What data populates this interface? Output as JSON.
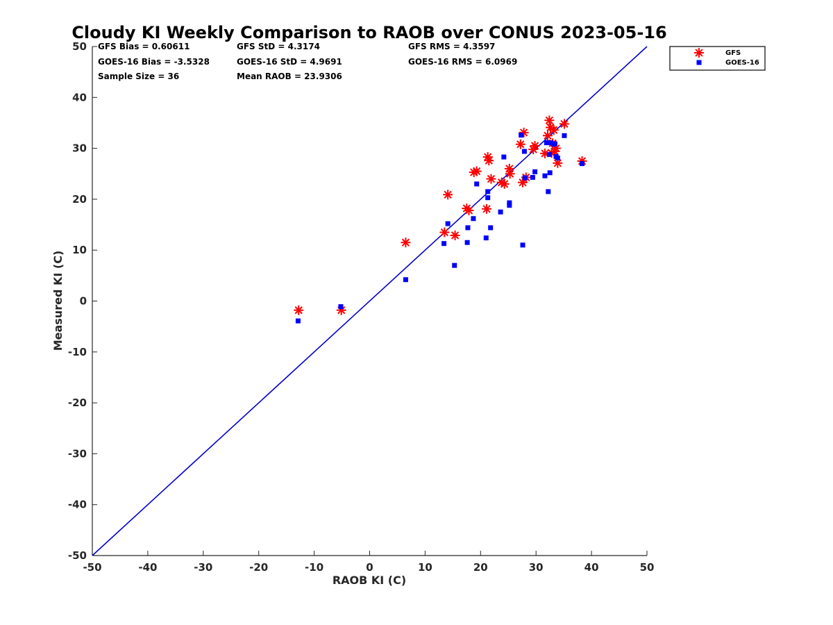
{
  "chart_data": {
    "type": "scatter",
    "title": "Cloudy KI Weekly Comparison to RAOB over CONUS 2023-05-16",
    "xlabel": "RAOB KI (C)",
    "ylabel": "Measured KI (C)",
    "xlim": [
      -50,
      50
    ],
    "ylim": [
      -50,
      50
    ],
    "xticks": [
      "-50",
      "-40",
      "-30",
      "-20",
      "-10",
      "0",
      "10",
      "20",
      "30",
      "40",
      "50"
    ],
    "yticks": [
      "-50",
      "-40",
      "-30",
      "-20",
      "-10",
      "0",
      "10",
      "20",
      "30",
      "40",
      "50"
    ],
    "grid": false,
    "legend_position": "outside top-right",
    "reference_line": {
      "type": "1:1",
      "color": "#0000cc"
    },
    "stats": [
      [
        "GFS Bias = 0.60611",
        "GFS StD = 4.3174",
        "GFS RMS = 4.3597"
      ],
      [
        "GOES-16 Bias = -3.5328",
        "GOES-16 StD = 4.9691",
        "GOES-16 RMS = 6.0969"
      ],
      [
        "Sample Size = 36",
        "Mean RAOB = 23.9306",
        ""
      ]
    ],
    "series": [
      {
        "name": "GFS",
        "marker": "asterisk",
        "color": "#ff0000",
        "points": [
          [
            -12.8,
            -1.8
          ],
          [
            -5.1,
            -1.8
          ],
          [
            6.5,
            11.5
          ],
          [
            13.5,
            13.5
          ],
          [
            14.1,
            20.9
          ],
          [
            15.4,
            12.9
          ],
          [
            17.5,
            18.2
          ],
          [
            17.9,
            17.8
          ],
          [
            18.8,
            25.3
          ],
          [
            19.3,
            25.5
          ],
          [
            21.1,
            18.1
          ],
          [
            21.3,
            28.3
          ],
          [
            21.5,
            27.6
          ],
          [
            21.9,
            24.0
          ],
          [
            23.8,
            23.3
          ],
          [
            24.3,
            23.0
          ],
          [
            25.2,
            26.0
          ],
          [
            25.3,
            25.0
          ],
          [
            27.2,
            30.8
          ],
          [
            27.8,
            33.1
          ],
          [
            27.6,
            23.3
          ],
          [
            28.2,
            24.3
          ],
          [
            29.5,
            29.8
          ],
          [
            29.8,
            30.5
          ],
          [
            31.6,
            29.0
          ],
          [
            32.1,
            32.5
          ],
          [
            32.4,
            35.5
          ],
          [
            32.6,
            34.1
          ],
          [
            33.0,
            31.0
          ],
          [
            33.2,
            33.6
          ],
          [
            33.4,
            29.4
          ],
          [
            33.6,
            30.0
          ],
          [
            33.9,
            27.1
          ],
          [
            35.1,
            34.8
          ],
          [
            38.3,
            27.5
          ],
          [
            32.8,
            29.1
          ]
        ]
      },
      {
        "name": "GOES-16",
        "marker": "square",
        "color": "#0000ff",
        "points": [
          [
            -12.9,
            -3.9
          ],
          [
            -5.2,
            -1.1
          ],
          [
            6.5,
            4.2
          ],
          [
            13.4,
            11.3
          ],
          [
            14.1,
            15.2
          ],
          [
            15.3,
            7.0
          ],
          [
            17.6,
            11.5
          ],
          [
            17.7,
            14.4
          ],
          [
            18.7,
            16.2
          ],
          [
            19.3,
            23.0
          ],
          [
            21.0,
            12.4
          ],
          [
            21.3,
            21.5
          ],
          [
            21.3,
            20.3
          ],
          [
            21.8,
            14.4
          ],
          [
            23.6,
            17.5
          ],
          [
            24.2,
            28.3
          ],
          [
            25.2,
            19.3
          ],
          [
            25.2,
            18.8
          ],
          [
            27.3,
            32.6
          ],
          [
            27.6,
            11.0
          ],
          [
            27.9,
            29.4
          ],
          [
            28.0,
            24.2
          ],
          [
            29.4,
            24.3
          ],
          [
            29.8,
            25.4
          ],
          [
            31.6,
            24.6
          ],
          [
            31.9,
            31.1
          ],
          [
            32.2,
            21.5
          ],
          [
            32.4,
            28.8
          ],
          [
            32.5,
            25.2
          ],
          [
            32.7,
            31.1
          ],
          [
            33.1,
            30.8
          ],
          [
            33.4,
            30.9
          ],
          [
            33.6,
            28.4
          ],
          [
            33.9,
            28.1
          ],
          [
            35.1,
            32.5
          ],
          [
            38.3,
            27.0
          ]
        ]
      }
    ]
  }
}
